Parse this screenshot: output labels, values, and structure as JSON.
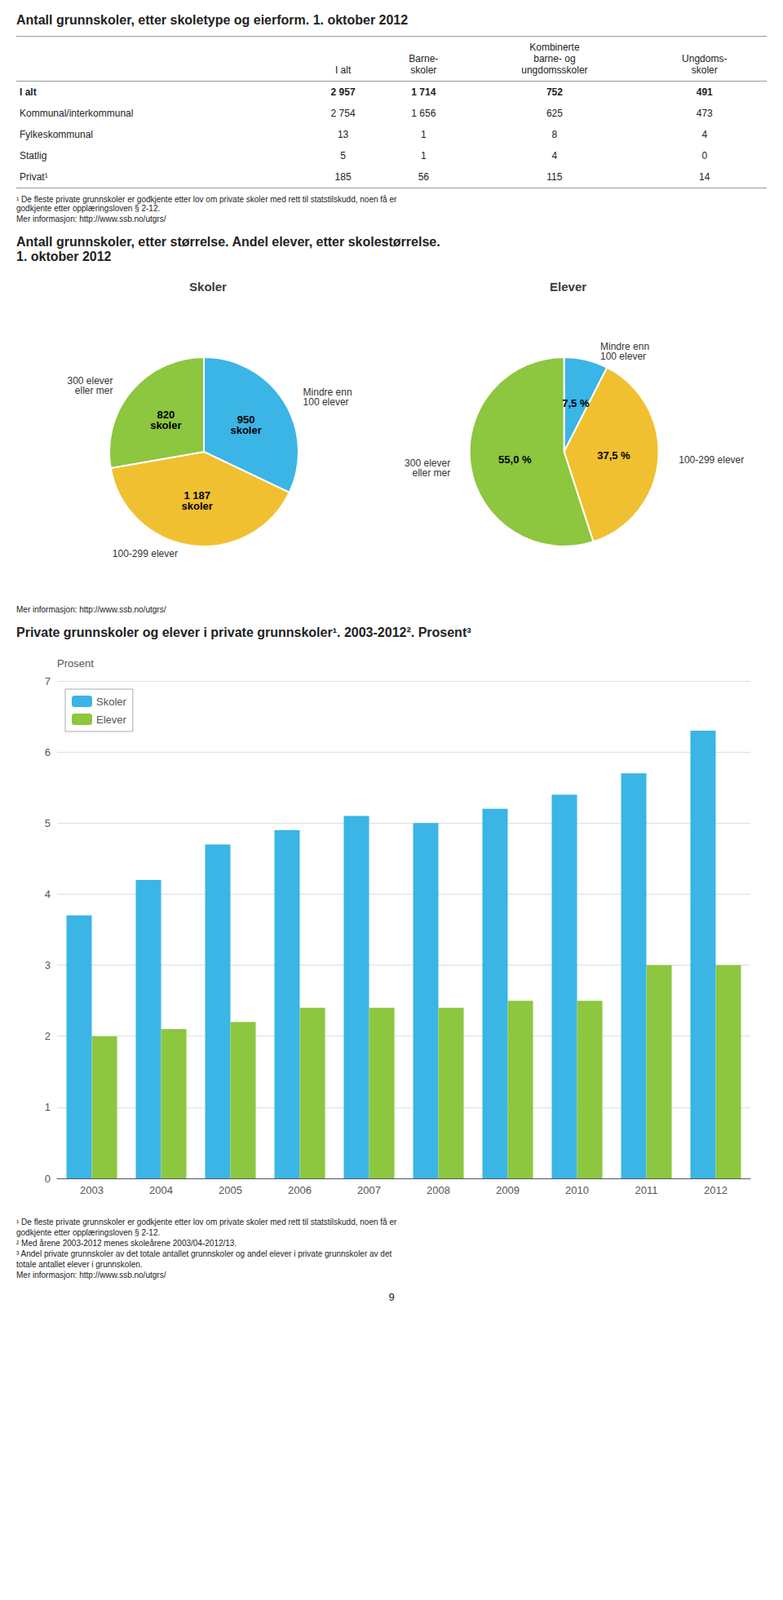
{
  "chart_data": [
    {
      "type": "table",
      "title": "Antall grunnskoler, etter skoletype og eierform. 1. oktober 2012",
      "columns": [
        "I alt",
        "Barne-\nskoler",
        "Kombinerte\nbarne- og\nungdomsskoler",
        "Ungdoms-\nskoler"
      ],
      "rows": [
        [
          "I alt",
          "2 957",
          "1 714",
          "752",
          "491"
        ],
        [
          "Kommunal/interkommunal",
          "2 754",
          "1 656",
          "625",
          "473"
        ],
        [
          "Fylkeskommunal",
          "13",
          "1",
          "8",
          "4"
        ],
        [
          "Statlig",
          "5",
          "1",
          "4",
          "0"
        ],
        [
          "Privat¹",
          "185",
          "56",
          "115",
          "14"
        ]
      ],
      "annotations": [
        "¹ De fleste private grunnskoler er godkjente etter lov om private skoler med rett til statstilskudd, noen få er\ngodkjente etter opplæringsloven § 2-12.",
        "Mer informasjon: http://www.ssb.no/utgrs/"
      ]
    },
    {
      "type": "pie",
      "title": "Antall grunnskoler, etter størrelse. Andel elever, etter skolestørrelse.\n1. oktober 2012",
      "subtitle": "Skoler",
      "categories": [
        "Mindre enn\n100 elever",
        "100-299 elever",
        "300 elever\neller mer"
      ],
      "values": [
        32.08,
        40.17,
        27.75
      ],
      "colors": [
        "#3ab5e5",
        "#f0c030",
        "#8dc63f"
      ],
      "annotations": [
        "950\nskoler",
        "1 187\nskoler",
        "820\nskoler"
      ]
    },
    {
      "type": "pie",
      "subtitle": "Elever",
      "categories": [
        "Mindre enn\n100 elever",
        "100-299 elever",
        "300 elever\neller mer"
      ],
      "values": [
        7.5,
        37.5,
        55.0
      ],
      "value_labels": [
        "7,5 %",
        "37,5 %",
        "55,0 %"
      ],
      "data_labels": true,
      "colors": [
        "#3ab5e5",
        "#f0c030",
        "#8dc63f"
      ],
      "annotations": [
        "Mer informasjon: http://www.ssb.no/utgrs/"
      ]
    },
    {
      "type": "bar",
      "title": "Private grunnskoler og elever i private grunnskoler¹. 2003-2012². Prosent³",
      "categories": [
        "2003",
        "2004",
        "2005",
        "2006",
        "2007",
        "2008",
        "2009",
        "2010",
        "2011",
        "2012"
      ],
      "series": [
        {
          "name": "Skoler",
          "color": "#3ab5e5",
          "values": [
            3.7,
            4.2,
            4.7,
            4.9,
            5.1,
            5.0,
            5.2,
            5.4,
            5.7,
            6.3
          ]
        },
        {
          "name": "Elever",
          "color": "#8dc63f",
          "values": [
            2.0,
            2.1,
            2.2,
            2.4,
            2.4,
            2.4,
            2.5,
            2.5,
            3.0,
            3.0
          ]
        }
      ],
      "ylabel": "Prosent",
      "ylim": [
        0,
        7
      ],
      "yticks": [
        0,
        1,
        2,
        3,
        4,
        5,
        6,
        7
      ],
      "grid": true,
      "legend": "upper left",
      "annotations": [
        "¹ De fleste private grunnskoler er godkjente etter lov om private skoler med rett til statstilskudd, noen få er",
        "godkjente etter opplæringsloven § 2-12.",
        "² Med årene 2003-2012 menes skoleårene 2003/04-2012/13.",
        "³ Andel private grunnskoler av det totale antallet grunnskoler og andel elever i private grunnskoler av det",
        "totale antallet elever i grunnskolen.",
        "Mer informasjon: http://www.ssb.no/utgrs/"
      ]
    }
  ],
  "annotations": [
    "9"
  ]
}
